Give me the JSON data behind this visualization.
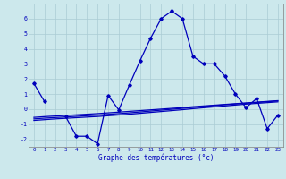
{
  "background_color": "#cce8ec",
  "grid_color": "#aaccd4",
  "line_color": "#0000bb",
  "xlabel": "Graphe des températures (°c)",
  "x_hours": [
    0,
    1,
    2,
    3,
    4,
    5,
    6,
    7,
    8,
    9,
    10,
    11,
    12,
    13,
    14,
    15,
    16,
    17,
    18,
    19,
    20,
    21,
    22,
    23
  ],
  "temp_main": [
    1.7,
    0.5,
    null,
    -0.5,
    -1.8,
    -1.8,
    -2.3,
    0.9,
    -0.05,
    1.6,
    3.2,
    4.7,
    6.0,
    6.5,
    6.0,
    3.5,
    3.0,
    3.0,
    2.2,
    1.0,
    0.1,
    0.7,
    -1.3,
    -0.4
  ],
  "trend1": [
    -0.55,
    -0.5,
    -0.46,
    -0.42,
    -0.38,
    -0.34,
    -0.3,
    -0.25,
    -0.2,
    -0.15,
    -0.1,
    -0.05,
    0.0,
    0.05,
    0.1,
    0.16,
    0.21,
    0.26,
    0.31,
    0.36,
    0.41,
    0.46,
    0.51,
    0.56
  ],
  "trend2": [
    -0.65,
    -0.6,
    -0.56,
    -0.52,
    -0.48,
    -0.44,
    -0.4,
    -0.35,
    -0.3,
    -0.25,
    -0.19,
    -0.13,
    -0.07,
    -0.01,
    0.05,
    0.11,
    0.17,
    0.23,
    0.29,
    0.34,
    0.39,
    0.44,
    0.49,
    0.54
  ],
  "trend3": [
    -0.75,
    -0.7,
    -0.65,
    -0.61,
    -0.57,
    -0.53,
    -0.49,
    -0.44,
    -0.39,
    -0.34,
    -0.28,
    -0.22,
    -0.16,
    -0.1,
    -0.04,
    0.03,
    0.09,
    0.15,
    0.21,
    0.27,
    0.33,
    0.38,
    0.43,
    0.48
  ],
  "ylim": [
    -2.5,
    7.0
  ],
  "yticks": [
    -2,
    -1,
    0,
    1,
    2,
    3,
    4,
    5,
    6
  ]
}
